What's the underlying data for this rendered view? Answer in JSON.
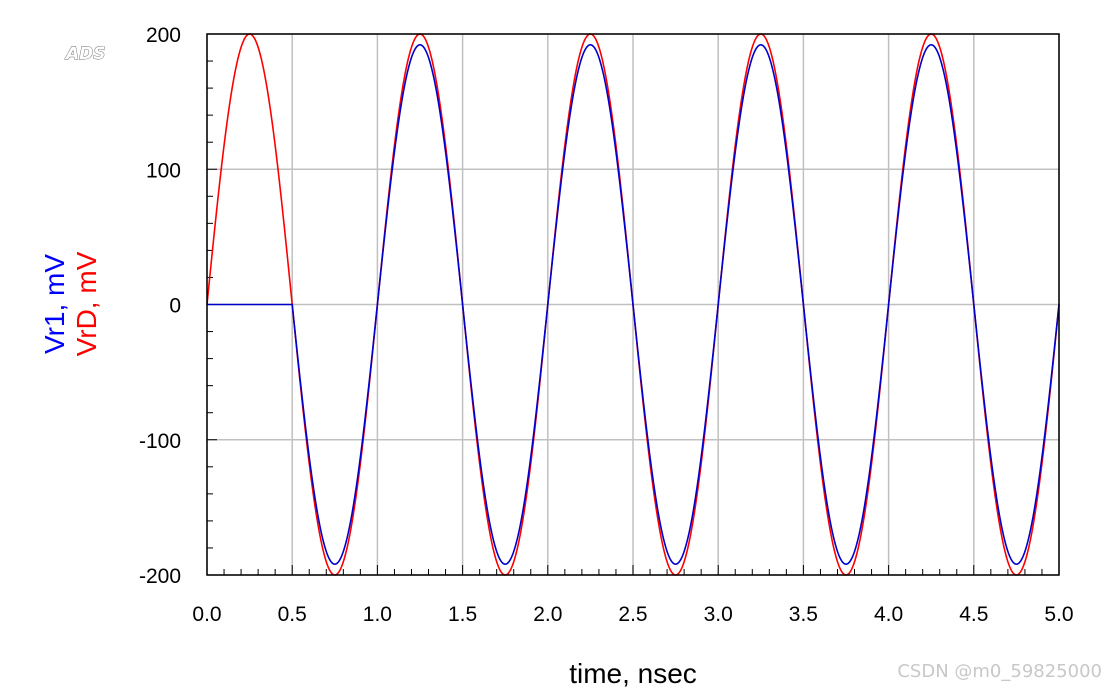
{
  "chart_data": {
    "type": "line",
    "logo_text": "ADS",
    "xlabel": "time, nsec",
    "ylabels": [
      {
        "text": "Vr1, mV",
        "color": "#0000ff"
      },
      {
        "text": "VrD, mV",
        "color": "#ff0000"
      }
    ],
    "xlim": [
      0,
      5
    ],
    "ylim": [
      -200,
      200
    ],
    "x_ticks": [
      "0.0",
      "0.5",
      "1.0",
      "1.5",
      "2.0",
      "2.5",
      "3.0",
      "3.5",
      "4.0",
      "4.5",
      "5.0"
    ],
    "x_tick_values": [
      0,
      0.5,
      1,
      1.5,
      2,
      2.5,
      3,
      3.5,
      4,
      4.5,
      5
    ],
    "y_ticks": [
      "200",
      "100",
      "0",
      "-100",
      "-200"
    ],
    "y_tick_values": [
      200,
      100,
      0,
      -100,
      -200
    ],
    "grid": true,
    "series": [
      {
        "name": "VrD",
        "color": "#ff0000",
        "amplitude_mV": 200,
        "period_ns": 1.0,
        "start_ns": 0.0,
        "x": [
          0,
          0.25,
          0.5,
          0.75,
          1.0,
          1.25,
          1.5,
          1.75,
          2.0,
          2.25,
          2.5,
          2.75,
          3.0,
          3.25,
          3.5,
          3.75,
          4.0,
          4.25,
          4.5,
          4.75,
          5.0
        ],
        "y": [
          0,
          200,
          0,
          -200,
          0,
          200,
          0,
          -200,
          0,
          200,
          0,
          -200,
          0,
          200,
          0,
          -200,
          0,
          200,
          0,
          -200,
          0
        ]
      },
      {
        "name": "Vr1",
        "color": "#0000cc",
        "amplitude_mV": 192,
        "period_ns": 1.0,
        "start_ns": 0.5,
        "x": [
          0,
          0.5,
          0.75,
          1.0,
          1.25,
          1.5,
          1.75,
          2.0,
          2.25,
          2.5,
          2.75,
          3.0,
          3.25,
          3.5,
          3.75,
          4.0,
          4.25,
          4.5,
          4.75,
          5.0
        ],
        "y": [
          0,
          0,
          -192,
          0,
          192,
          0,
          -192,
          0,
          192,
          0,
          -192,
          0,
          192,
          0,
          -192,
          0,
          192,
          0,
          -192,
          0
        ]
      }
    ]
  },
  "watermark": "CSDN @m0_59825000"
}
